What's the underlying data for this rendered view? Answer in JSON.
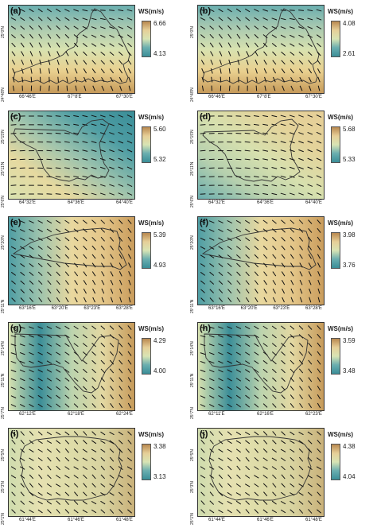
{
  "panels": [
    {
      "label": "(a)",
      "lon_labels": [
        "66°46'E",
        "67°8'E",
        "67°30'E"
      ],
      "lat_labels": [
        "25°0'N",
        "24°48'N"
      ],
      "legend_title": "WS(m/s)",
      "max": "6.66",
      "min": "4.13",
      "grad": [
        "#b98950",
        "#e6cf98",
        "#d8e4b4",
        "#6aaeaf",
        "#3b8e98"
      ],
      "dir": "v"
    },
    {
      "label": "(b)",
      "lon_labels": [
        "66°46'E",
        "67°8'E",
        "67°30'E"
      ],
      "lat_labels": [
        "25°0'N",
        "24°48'N"
      ],
      "legend_title": "WS(m/s)",
      "max": "4.08",
      "min": "2.61",
      "grad": [
        "#b98950",
        "#e6cf98",
        "#d8e4b4",
        "#6aaeaf",
        "#3b8e98"
      ],
      "dir": "v"
    },
    {
      "label": "(c)",
      "lon_labels": [
        "64°32'E",
        "64°36'E",
        "64°40'E"
      ],
      "lat_labels": [
        "25°15'N",
        "25°11'N",
        "25°6'N"
      ],
      "legend_title": "WS(m/s)",
      "max": "5.60",
      "min": "5.32",
      "grad": [
        "#b98950",
        "#e6cf98",
        "#d8e4b4",
        "#6aaeaf",
        "#3b8e98"
      ],
      "dir": "c"
    },
    {
      "label": "(d)",
      "lon_labels": [
        "64°32'E",
        "64°36'E",
        "64°40'E"
      ],
      "lat_labels": [
        "25°15'N",
        "25°11'N",
        "25°6'N"
      ],
      "legend_title": "WS(m/s)",
      "max": "5.68",
      "min": "5.33",
      "grad": [
        "#b98950",
        "#e6cf98",
        "#d8e4b4",
        "#6aaeaf",
        "#3b8e98"
      ],
      "dir": "d"
    },
    {
      "label": "(e)",
      "lon_labels": [
        "63°16'E",
        "63°20'E",
        "63°23'E",
        "63°28'E"
      ],
      "lat_labels": [
        "25°20'N",
        "25°11'N"
      ],
      "legend_title": "WS(m/s)",
      "max": "5.39",
      "min": "4.93",
      "grad": [
        "#b98950",
        "#e6cf98",
        "#d8e4b4",
        "#6aaeaf",
        "#3b8e98"
      ],
      "dir": "e"
    },
    {
      "label": "(f)",
      "lon_labels": [
        "63°16'E",
        "63°20'E",
        "63°23'E",
        "63°28'E"
      ],
      "lat_labels": [
        "25°20'N",
        "25°11'N"
      ],
      "legend_title": "WS(m/s)",
      "max": "3.98",
      "min": "3.76",
      "grad": [
        "#b98950",
        "#e6cf98",
        "#d8e4b4",
        "#6aaeaf",
        "#3b8e98"
      ],
      "dir": "e"
    },
    {
      "label": "(g)",
      "lon_labels": [
        "62°12'E",
        "62°18'E",
        "62°24'E"
      ],
      "lat_labels": [
        "25°14'N",
        "25°11'N",
        "25°7'N"
      ],
      "legend_title": "WS(m/s)",
      "max": "4.29",
      "min": "4.00",
      "grad": [
        "#b98950",
        "#e6cf98",
        "#d8e4b4",
        "#6aaeaf",
        "#3b8e98"
      ],
      "dir": "g"
    },
    {
      "label": "(h)",
      "lon_labels": [
        "62°11'E",
        "62°16'E",
        "62°23'E"
      ],
      "lat_labels": [
        "25°14'N",
        "25°11'N",
        "25°7'N"
      ],
      "legend_title": "WS(m/s)",
      "max": "3.59",
      "min": "3.48",
      "grad": [
        "#b98950",
        "#e6cf98",
        "#d8e4b4",
        "#6aaeaf",
        "#3b8e98"
      ],
      "dir": "g"
    },
    {
      "label": "(i)",
      "lon_labels": [
        "61°44'E",
        "61°46'E",
        "61°48'E"
      ],
      "lat_labels": [
        "25°5'N",
        "25°3'N",
        "25°1'N"
      ],
      "legend_title": "WS(m/s)",
      "max": "3.38",
      "min": "3.13",
      "grad": [
        "#b98950",
        "#e6cf98",
        "#d8e4b4",
        "#6aaeaf",
        "#3b8e98"
      ],
      "dir": "i"
    },
    {
      "label": "(j)",
      "lon_labels": [
        "61°44'E",
        "61°46'E",
        "61°48'E"
      ],
      "lat_labels": [
        "25°5'N",
        "25°3'N",
        "25°1'N"
      ],
      "legend_title": "WS(m/s)",
      "max": "4.38",
      "min": "4.04",
      "grad": [
        "#b98950",
        "#e6cf98",
        "#d8e4b4",
        "#6aaeaf",
        "#3b8e98"
      ],
      "dir": "i"
    }
  ]
}
